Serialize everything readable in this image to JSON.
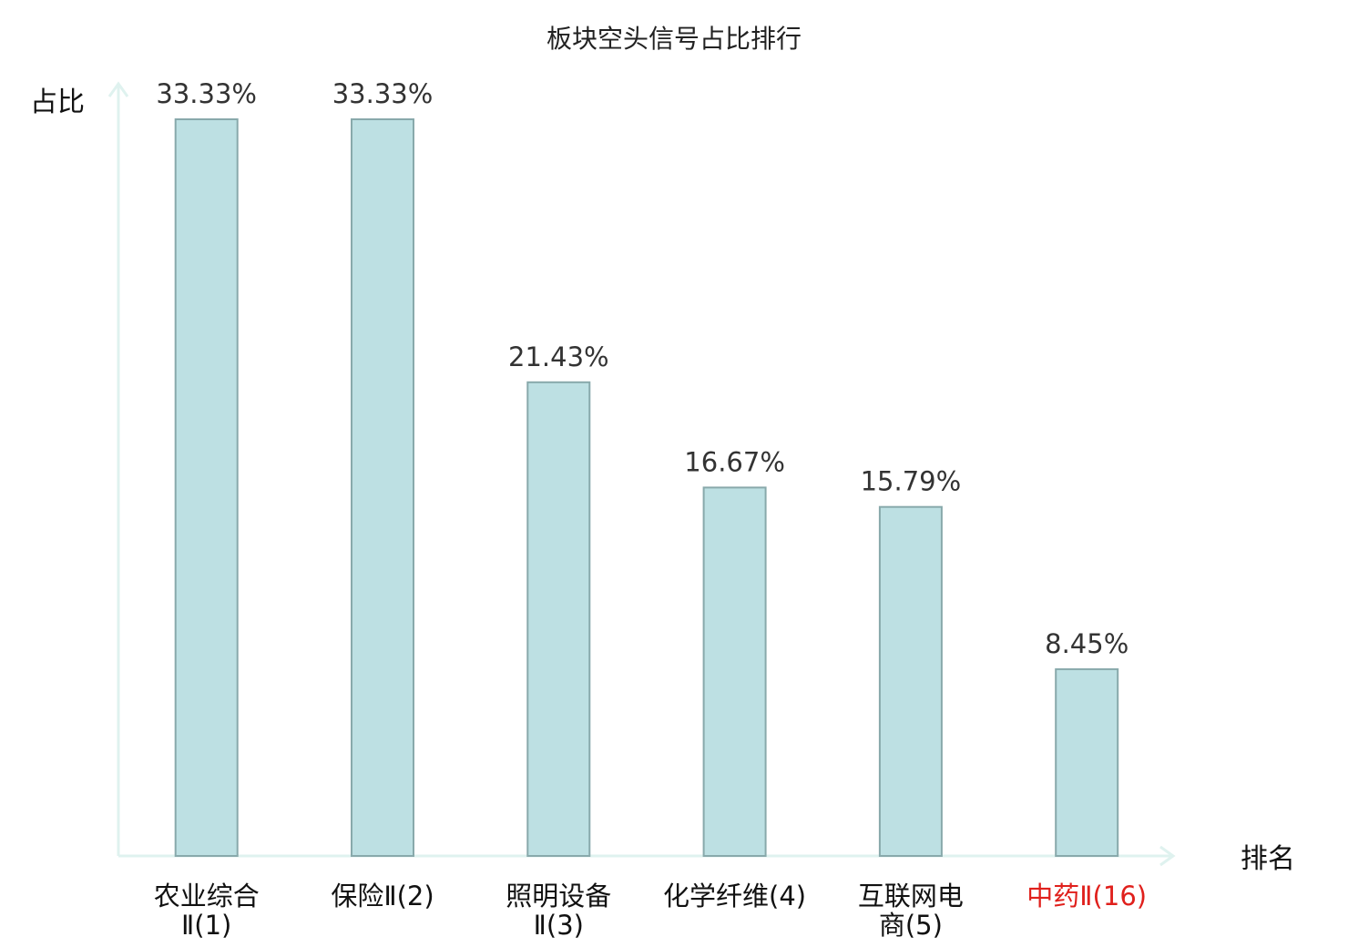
{
  "chart_data": {
    "type": "bar",
    "title": "板块空头信号占比排行",
    "ylabel": "占比",
    "xlabel": "排名",
    "categories": [
      [
        "农业综合",
        "Ⅱ(1)"
      ],
      [
        "保险Ⅱ(2)"
      ],
      [
        "照明设备",
        "Ⅱ(3)"
      ],
      [
        "化学纤维(4)"
      ],
      [
        "互联网电",
        "商(5)"
      ],
      [
        "中药Ⅱ(16)"
      ]
    ],
    "values": [
      33.33,
      33.33,
      21.43,
      16.67,
      15.79,
      8.45
    ],
    "value_labels": [
      "33.33%",
      "33.33%",
      "21.43%",
      "16.67%",
      "15.79%",
      "8.45%"
    ],
    "highlight_index": 5,
    "ylim": [
      0,
      35
    ],
    "grid": false,
    "colors": {
      "bar_fill": "#bde0e3",
      "bar_stroke": "#88a9ab",
      "axis": "#dff2ef",
      "label_default": "#111111",
      "label_highlight": "#e0201c"
    }
  }
}
